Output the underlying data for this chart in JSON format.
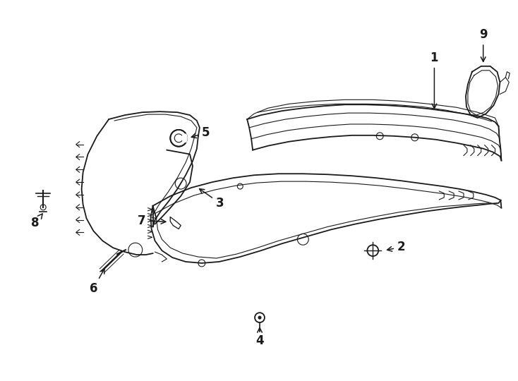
{
  "background_color": "#ffffff",
  "line_color": "#1a1a1a",
  "figsize": [
    7.34,
    5.4
  ],
  "dpi": 100,
  "label_fontsize": 12,
  "label_fontweight": "bold"
}
